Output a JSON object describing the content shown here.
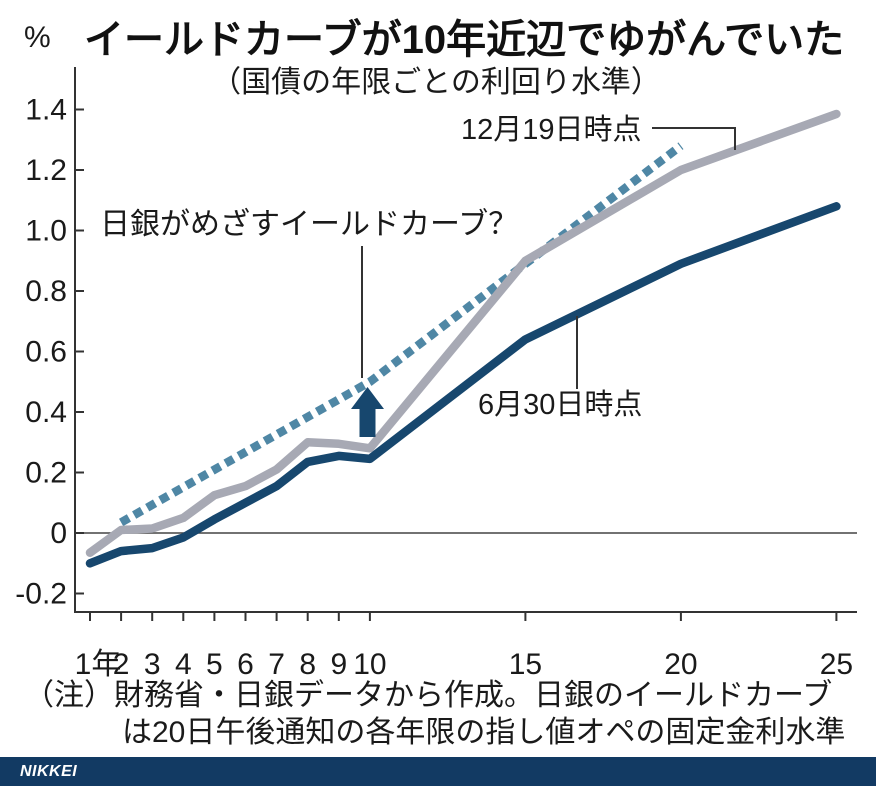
{
  "colors": {
    "navy": "#17476e",
    "gray": "#a7a9b4",
    "dashed_teal": "#4f87a5",
    "axis": "#333333",
    "text": "#1a1a1a",
    "footer_bar": "#123a63",
    "logo_text": "#ffffff"
  },
  "header": {
    "unit_label": "%"
  },
  "chart_data": {
    "type": "line",
    "title": "イールドカーブが10年近辺でゆがんでいた",
    "subtitle": "（国債の年限ごとの利回り水準）",
    "y_unit": "%",
    "xlim": [
      1,
      25
    ],
    "ylim": [
      -0.2,
      1.4
    ],
    "grid": false,
    "legend_position": "inline-annotations",
    "x_ticks": [
      {
        "v": 1,
        "label": "1年"
      },
      {
        "v": 2,
        "label": "2"
      },
      {
        "v": 3,
        "label": "3"
      },
      {
        "v": 4,
        "label": "4"
      },
      {
        "v": 5,
        "label": "5"
      },
      {
        "v": 6,
        "label": "6"
      },
      {
        "v": 7,
        "label": "7"
      },
      {
        "v": 8,
        "label": "8"
      },
      {
        "v": 9,
        "label": "9"
      },
      {
        "v": 10,
        "label": "10"
      },
      {
        "v": 15,
        "label": "15"
      },
      {
        "v": 20,
        "label": "20"
      },
      {
        "v": 25,
        "label": "25"
      }
    ],
    "y_ticks": [
      {
        "v": -0.2,
        "label": "-0.2"
      },
      {
        "v": 0,
        "label": "0"
      },
      {
        "v": 0.2,
        "label": "0.2"
      },
      {
        "v": 0.4,
        "label": "0.4"
      },
      {
        "v": 0.6,
        "label": "0.6"
      },
      {
        "v": 0.8,
        "label": "0.8"
      },
      {
        "v": 1.0,
        "label": "1.0"
      },
      {
        "v": 1.2,
        "label": "1.2"
      },
      {
        "v": 1.4,
        "label": "1.4"
      }
    ],
    "series": [
      {
        "name": "日銀がめざすイールドカーブ？",
        "style": "dashed",
        "color_key": "dashed_teal",
        "x": [
          2,
          10,
          20
        ],
        "y": [
          0.035,
          0.5,
          1.28
        ]
      },
      {
        "name": "12月19日時点",
        "style": "solid",
        "color_key": "gray",
        "x": [
          1,
          2,
          3,
          4,
          5,
          6,
          7,
          8,
          9,
          10,
          15,
          20,
          25
        ],
        "y": [
          -0.065,
          0.01,
          0.015,
          0.05,
          0.125,
          0.155,
          0.21,
          0.3,
          0.295,
          0.28,
          0.9,
          1.2,
          1.385
        ]
      },
      {
        "name": "6月30日時点",
        "style": "solid",
        "color_key": "navy",
        "x": [
          1,
          2,
          3,
          4,
          5,
          6,
          7,
          8,
          9,
          10,
          15,
          20,
          25
        ],
        "y": [
          -0.1,
          -0.06,
          -0.05,
          -0.015,
          0.045,
          0.1,
          0.155,
          0.235,
          0.255,
          0.245,
          0.64,
          0.89,
          1.08
        ]
      }
    ]
  },
  "note": {
    "line1": "（注）財務省・日銀データから作成。日銀のイールドカーブ",
    "line2": "は20日午後通知の各年限の指し値オペの固定金利水準"
  },
  "footer": {
    "brand": "NIKKEI"
  }
}
